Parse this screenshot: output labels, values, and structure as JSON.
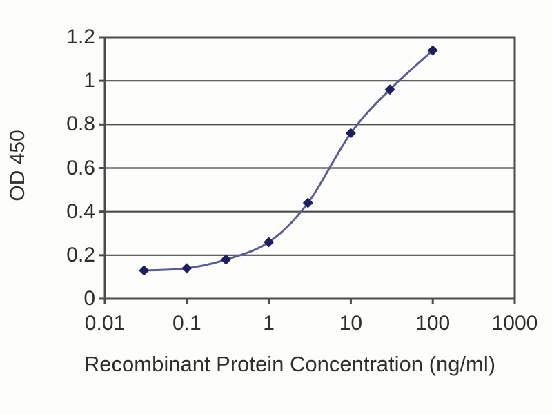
{
  "chart_data": {
    "type": "line",
    "title": "",
    "xlabel": "Recombinant Protein Concentration (ng/ml)",
    "ylabel": "OD 450",
    "x_scale": "log",
    "xlim": [
      0.01,
      1000
    ],
    "ylim": [
      0,
      1.2
    ],
    "x_ticks": [
      0.01,
      0.1,
      1,
      10,
      100,
      1000
    ],
    "x_tick_labels": [
      "0.01",
      "0.1",
      "1",
      "10",
      "100",
      "1000"
    ],
    "y_ticks": [
      0,
      0.2,
      0.4,
      0.6,
      0.8,
      1,
      1.2
    ],
    "y_tick_labels": [
      "0",
      "0.2",
      "0.4",
      "0.6",
      "0.8",
      "1",
      "1.2"
    ],
    "grid": "horizontal",
    "legend": "none",
    "marker_shape": "diamond",
    "line_smoothing": true,
    "series": [
      {
        "name": "OD 450",
        "x": [
          0.03,
          0.1,
          0.3,
          1,
          3,
          10,
          30,
          100
        ],
        "y": [
          0.13,
          0.14,
          0.18,
          0.26,
          0.44,
          0.76,
          0.96,
          1.14
        ]
      }
    ],
    "colors": {
      "line": "#5b5b99",
      "marker": "#1d1d62",
      "axis": "#4c4c4c",
      "grid": "#4c4c4c",
      "text": "#2e2e2e",
      "background": "#fdfdfb"
    }
  }
}
